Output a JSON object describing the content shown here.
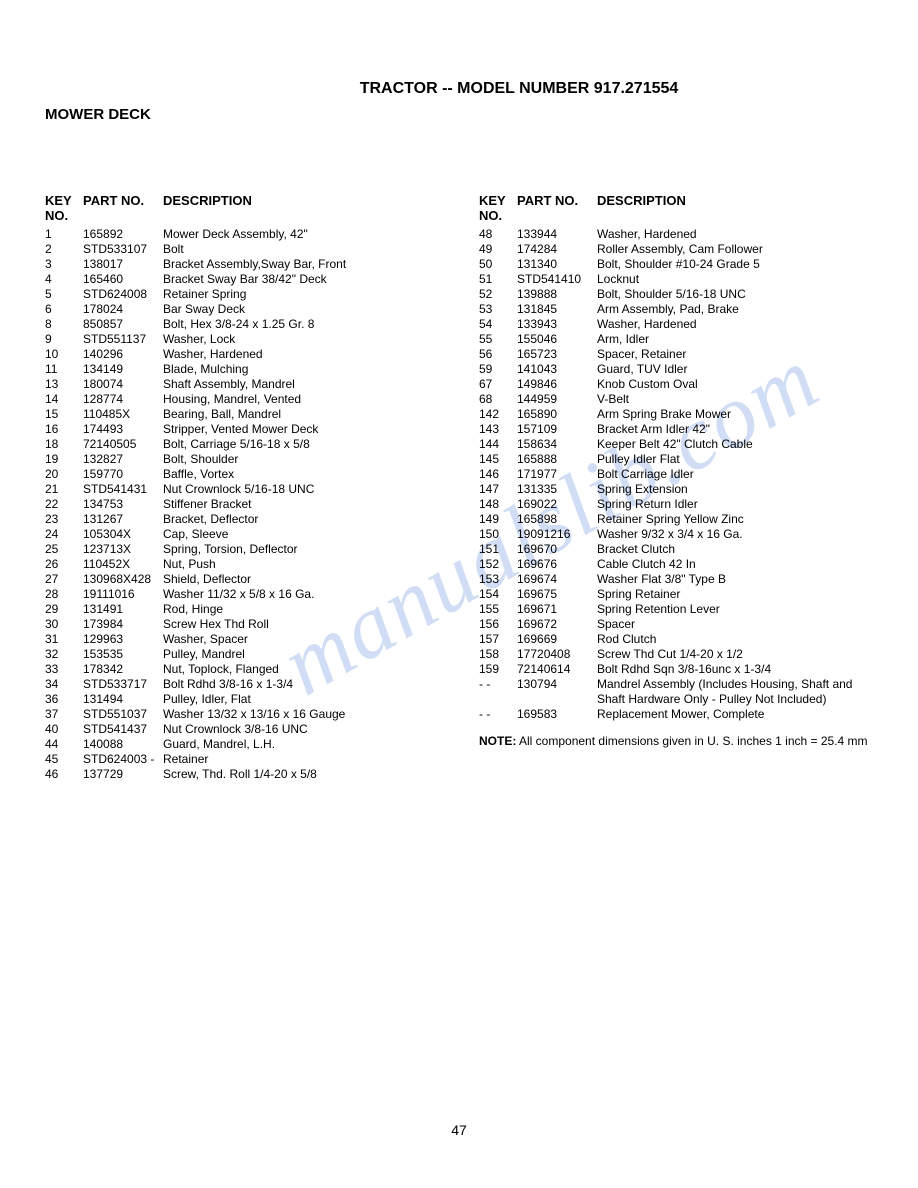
{
  "title": "TRACTOR -- MODEL NUMBER 917.271554",
  "section": "MOWER DECK",
  "header": {
    "key": "KEY NO.",
    "part": "PART NO.",
    "desc": "DESCRIPTION"
  },
  "left": [
    {
      "k": "1",
      "p": "165892",
      "d": "Mower Deck Assembly, 42\""
    },
    {
      "k": "2",
      "p": "STD533107",
      "d": "Bolt"
    },
    {
      "k": "3",
      "p": "138017",
      "d": "Bracket Assembly,Sway Bar, Front"
    },
    {
      "k": "4",
      "p": "165460",
      "d": "Bracket Sway Bar 38/42\" Deck"
    },
    {
      "k": "5",
      "p": "STD624008",
      "d": "Retainer Spring"
    },
    {
      "k": "6",
      "p": "178024",
      "d": "Bar Sway Deck"
    },
    {
      "k": "8",
      "p": "850857",
      "d": "Bolt, Hex 3/8-24 x 1.25 Gr. 8"
    },
    {
      "k": "9",
      "p": "STD551137",
      "d": "Washer, Lock"
    },
    {
      "k": "10",
      "p": "140296",
      "d": "Washer, Hardened"
    },
    {
      "k": "11",
      "p": "134149",
      "d": "Blade, Mulching"
    },
    {
      "k": "13",
      "p": "180074",
      "d": "Shaft Assembly, Mandrel"
    },
    {
      "k": "14",
      "p": "128774",
      "d": "Housing, Mandrel, Vented"
    },
    {
      "k": "15",
      "p": "110485X",
      "d": "Bearing, Ball, Mandrel"
    },
    {
      "k": "16",
      "p": "174493",
      "d": "Stripper, Vented Mower Deck"
    },
    {
      "k": "18",
      "p": "72140505",
      "d": "Bolt, Carriage 5/16-18 x 5/8"
    },
    {
      "k": "19",
      "p": "132827",
      "d": "Bolt, Shoulder"
    },
    {
      "k": "20",
      "p": "159770",
      "d": "Baffle, Vortex"
    },
    {
      "k": "21",
      "p": "STD541431",
      "d": "Nut Crownlock 5/16-18 UNC"
    },
    {
      "k": "22",
      "p": "134753",
      "d": "Stiffener Bracket"
    },
    {
      "k": "23",
      "p": "131267",
      "d": "Bracket, Deflector"
    },
    {
      "k": "24",
      "p": "105304X",
      "d": "Cap, Sleeve"
    },
    {
      "k": "25",
      "p": "123713X",
      "d": "Spring, Torsion, Deflector"
    },
    {
      "k": "26",
      "p": "110452X",
      "d": "Nut, Push"
    },
    {
      "k": "27",
      "p": "130968X428",
      "d": "Shield, Deflector"
    },
    {
      "k": "28",
      "p": "19111016",
      "d": "Washer 11/32 x 5/8 x 16 Ga."
    },
    {
      "k": "29",
      "p": "131491",
      "d": "Rod, Hinge"
    },
    {
      "k": "30",
      "p": "173984",
      "d": "Screw Hex Thd Roll"
    },
    {
      "k": "31",
      "p": "129963",
      "d": "Washer, Spacer"
    },
    {
      "k": "32",
      "p": "153535",
      "d": "Pulley, Mandrel"
    },
    {
      "k": "33",
      "p": "178342",
      "d": "Nut, Toplock, Flanged"
    },
    {
      "k": "34",
      "p": "STD533717",
      "d": "Bolt Rdhd 3/8-16 x 1-3/4"
    },
    {
      "k": "36",
      "p": "131494",
      "d": "Pulley, Idler, Flat"
    },
    {
      "k": "37",
      "p": "STD551037",
      "d": "Washer 13/32 x 13/16 x 16 Gauge"
    },
    {
      "k": "40",
      "p": "STD541437",
      "d": "Nut Crownlock 3/8-16 UNC"
    },
    {
      "k": "44",
      "p": "140088",
      "d": "Guard, Mandrel, L.H."
    },
    {
      "k": "45",
      "p": "STD624003 -",
      "d": "Retainer"
    },
    {
      "k": "46",
      "p": "137729",
      "d": "Screw, Thd. Roll 1/4-20 x 5/8"
    }
  ],
  "right": [
    {
      "k": "48",
      "p": "133944",
      "d": "Washer, Hardened"
    },
    {
      "k": "49",
      "p": "174284",
      "d": "Roller Assembly, Cam Follower"
    },
    {
      "k": "50",
      "p": "131340",
      "d": "Bolt, Shoulder #10-24 Grade 5"
    },
    {
      "k": "51",
      "p": "STD541410",
      "d": "Locknut"
    },
    {
      "k": "52",
      "p": "139888",
      "d": "Bolt, Shoulder 5/16-18 UNC"
    },
    {
      "k": "53",
      "p": "131845",
      "d": "Arm Assembly, Pad, Brake"
    },
    {
      "k": "54",
      "p": "133943",
      "d": "Washer, Hardened"
    },
    {
      "k": "55",
      "p": "155046",
      "d": "Arm, Idler"
    },
    {
      "k": "56",
      "p": "165723",
      "d": "Spacer, Retainer"
    },
    {
      "k": "59",
      "p": "141043",
      "d": "Guard, TUV Idler"
    },
    {
      "k": "67",
      "p": "149846",
      "d": "Knob Custom Oval"
    },
    {
      "k": "68",
      "p": "144959",
      "d": "V-Belt"
    },
    {
      "k": "142",
      "p": "165890",
      "d": "Arm Spring Brake Mower"
    },
    {
      "k": "143",
      "p": "157109",
      "d": "Bracket Arm Idler 42\""
    },
    {
      "k": "144",
      "p": "158634",
      "d": "Keeper Belt 42\" Clutch Cable"
    },
    {
      "k": "145",
      "p": "165888",
      "d": "Pulley Idler Flat"
    },
    {
      "k": "146",
      "p": "171977",
      "d": "Bolt Carriage Idler"
    },
    {
      "k": "147",
      "p": "131335",
      "d": "Spring Extension"
    },
    {
      "k": "148",
      "p": "169022",
      "d": "Spring Return Idler"
    },
    {
      "k": "149",
      "p": "165898",
      "d": "Retainer Spring Yellow Zinc"
    },
    {
      "k": "150",
      "p": "19091216",
      "d": "Washer 9/32 x 3/4 x 16 Ga."
    },
    {
      "k": "151",
      "p": "169670",
      "d": "Bracket Clutch"
    },
    {
      "k": "152",
      "p": "169676",
      "d": "Cable Clutch 42 In"
    },
    {
      "k": "153",
      "p": "169674",
      "d": "Washer Flat 3/8\" Type B"
    },
    {
      "k": "154",
      "p": "169675",
      "d": "Spring Retainer"
    },
    {
      "k": "155",
      "p": "169671",
      "d": "Spring Retention Lever"
    },
    {
      "k": "156",
      "p": "169672",
      "d": "Spacer"
    },
    {
      "k": "157",
      "p": "169669",
      "d": "Rod Clutch"
    },
    {
      "k": "158",
      "p": "17720408",
      "d": "Screw Thd Cut 1/4-20 x 1/2"
    },
    {
      "k": "159",
      "p": "72140614",
      "d": "Bolt Rdhd Sqn 3/8-16unc x 1-3/4"
    },
    {
      "k": "- -",
      "p": "130794",
      "d": "Mandrel Assembly (Includes Housing, Shaft and Shaft Hardware Only - Pulley Not Included)"
    },
    {
      "k": "- -",
      "p": "169583",
      "d": "Replacement Mower, Complete"
    }
  ],
  "note_label": "NOTE:",
  "note_text": "All component dimensions given in U. S. inches 1 inch = 25.4 mm",
  "watermark": "manualslib.com",
  "page_number": "47"
}
